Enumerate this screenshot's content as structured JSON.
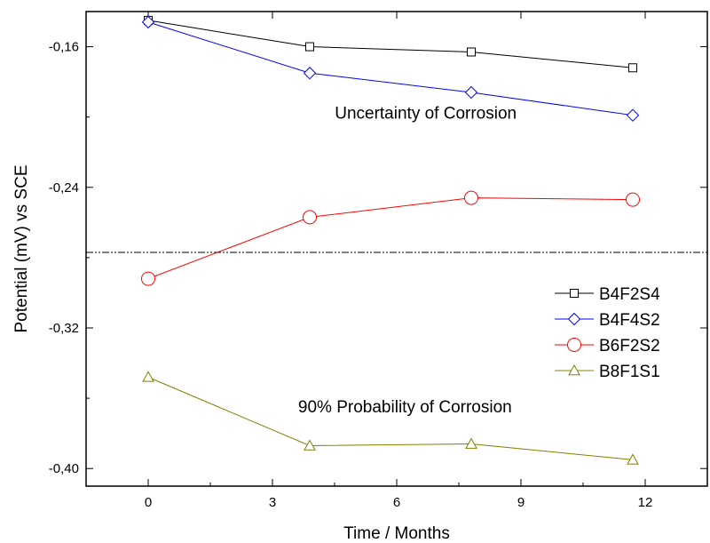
{
  "chart_data": {
    "type": "line",
    "xlabel": "Time / Months",
    "ylabel": "Potential (mV) vs SCE",
    "xlim": [
      -1.5,
      13.5
    ],
    "ylim": [
      -0.41,
      -0.14
    ],
    "xticks": [
      0,
      3,
      6,
      9,
      12
    ],
    "xtick_labels": [
      "0",
      "3",
      "6",
      "9",
      "12"
    ],
    "yticks": [
      -0.16,
      -0.24,
      -0.32,
      -0.4
    ],
    "ytick_labels": [
      "-0,16",
      "-0,24",
      "-0,32",
      "-0,40"
    ],
    "grid": false,
    "legend_position": "right",
    "series": [
      {
        "name": "B4F2S4",
        "color": "#000000",
        "marker": "square",
        "x": [
          0,
          3.9,
          7.8,
          11.7
        ],
        "y": [
          -0.145,
          -0.16,
          -0.163,
          -0.172
        ]
      },
      {
        "name": "B4F4S2",
        "color": "#0000ff",
        "marker": "diamond",
        "x": [
          0,
          3.9,
          7.8,
          11.7
        ],
        "y": [
          -0.146,
          -0.175,
          -0.186,
          -0.199
        ]
      },
      {
        "name": "B6F2S2",
        "color": "#ff0000",
        "marker": "circle",
        "x": [
          0,
          3.9,
          7.8,
          11.7
        ],
        "y": [
          -0.292,
          -0.257,
          -0.246,
          -0.247
        ]
      },
      {
        "name": "B8F1S1",
        "color": "#808000",
        "marker": "triangle",
        "x": [
          0,
          3.9,
          7.8,
          11.7
        ],
        "y": [
          -0.348,
          -0.387,
          -0.386,
          -0.395
        ]
      }
    ],
    "reference_line": {
      "y": -0.277,
      "style": "dash-dot-dot"
    },
    "annotations": [
      {
        "text": "Uncertainty of Corrosion",
        "x": 6.7,
        "y": -0.201
      },
      {
        "text": "90% Probability of Corrosion",
        "x": 6.2,
        "y": -0.368
      }
    ]
  }
}
